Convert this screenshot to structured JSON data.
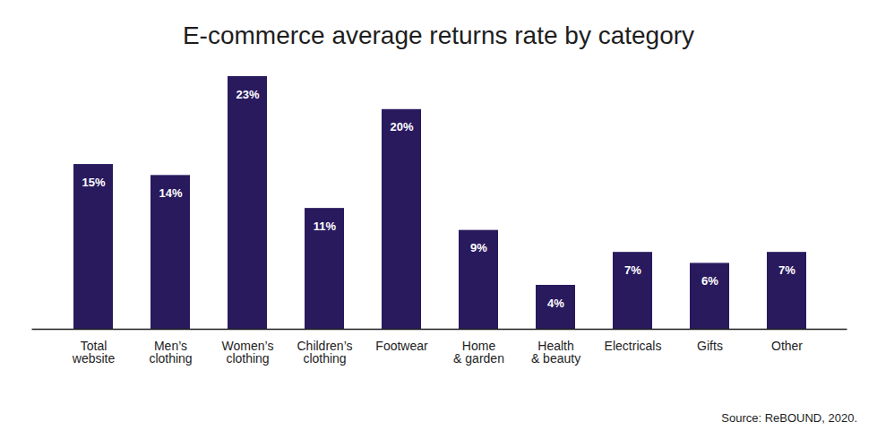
{
  "chart_data": {
    "type": "bar",
    "title": "E-commerce average returns rate by category",
    "source": "Source: ReBOUND, 2020.",
    "categories": [
      "Total\nwebsite",
      "Men’s\nclothing",
      "Women’s\nclothing",
      "Children’s\nclothing",
      "Footwear",
      "Home\n& garden",
      "Health\n& beauty",
      "Electricals",
      "Gifts",
      "Other"
    ],
    "values": [
      15,
      14,
      23,
      11,
      20,
      9,
      4,
      7,
      6,
      7
    ],
    "value_labels": [
      "15%",
      "14%",
      "23%",
      "11%",
      "20%",
      "9%",
      "4%",
      "7%",
      "6%",
      "7%"
    ],
    "color": "#291a5e",
    "ylim": [
      0,
      23
    ],
    "data_labels": true,
    "tick_labels": "x"
  }
}
